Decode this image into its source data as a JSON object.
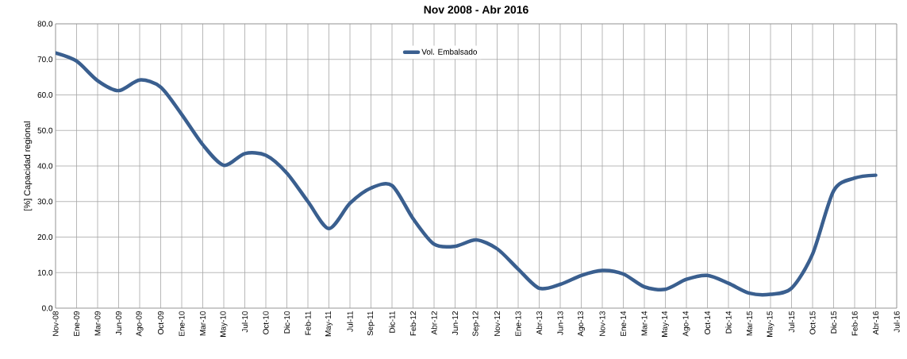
{
  "chart_data": {
    "type": "line",
    "title": "Nov 2008 - Abr 2016",
    "ylabel": "[%] Capacidad regional",
    "categories": [
      "Nov-08",
      "Ene-09",
      "Mar-09",
      "Jun-09",
      "Ago-09",
      "Oct-09",
      "Ene-10",
      "Mar-10",
      "May-10",
      "Jul-10",
      "Oct-10",
      "Dic-10",
      "Feb-11",
      "May-11",
      "Jul-11",
      "Sep-11",
      "Dic-11",
      "Feb-12",
      "Abr-12",
      "Jun-12",
      "Sep-12",
      "Nov-12",
      "Ene-13",
      "Abr-13",
      "Jun-13",
      "Ago-13",
      "Nov-13",
      "Ene-14",
      "Mar-14",
      "May-14",
      "Ago-14",
      "Oct-14",
      "Dic-14",
      "Mar-15",
      "May-15",
      "Jul-15",
      "Oct-15",
      "Dic-15",
      "Feb-16",
      "Abr-16",
      "Jul-16"
    ],
    "series": [
      {
        "name": "Vol. Embalsado",
        "color": "#3a5f8f",
        "values": [
          71.8,
          69.5,
          64,
          61.2,
          64.2,
          62.2,
          54.5,
          46,
          40.2,
          43.5,
          43,
          38,
          30,
          22.4,
          29.5,
          33.8,
          34.5,
          25.2,
          18,
          17.4,
          19.2,
          16.7,
          11,
          5.6,
          6.7,
          9.2,
          10.6,
          9.6,
          6,
          5.3,
          8.1,
          9.2,
          7,
          4.2,
          3.9,
          5.6,
          15.2,
          33,
          36.6,
          37.4,
          null
        ]
      }
    ],
    "ylim": [
      0,
      80
    ],
    "yticks": [
      {
        "value": 0,
        "label": "0.0"
      },
      {
        "value": 10,
        "label": "10.0"
      },
      {
        "value": 20,
        "label": "20.0"
      },
      {
        "value": 30,
        "label": "30.0"
      },
      {
        "value": 40,
        "label": "40.0"
      },
      {
        "value": 50,
        "label": "50.0"
      },
      {
        "value": 60,
        "label": "60.0"
      },
      {
        "value": 70,
        "label": "70.0"
      },
      {
        "value": 80,
        "label": "80.0"
      }
    ],
    "grid": true,
    "legend": "top",
    "marker": "none",
    "line_style": "solid"
  }
}
